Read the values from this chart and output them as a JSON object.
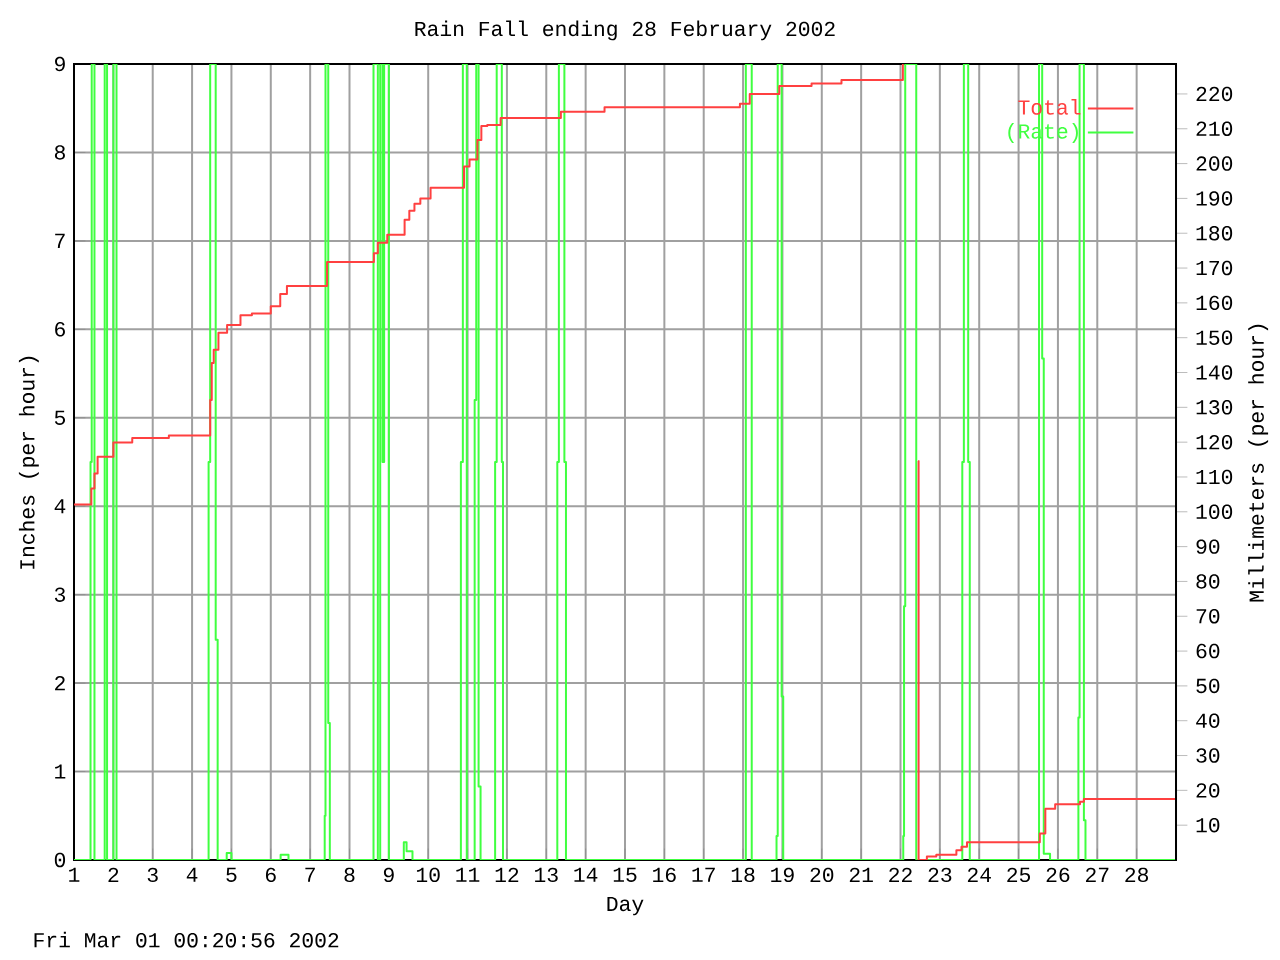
{
  "chart_data": {
    "type": "step",
    "title": "Rain Fall ending 28 February 2002",
    "xlabel": "Day",
    "ylabel": "Inches (per hour)",
    "y2label": "Millimeters (per hour)",
    "annotations": [
      "Fri Mar 01 00:20:56 2002"
    ],
    "xlim": [
      1,
      29
    ],
    "xticks": [
      1,
      2,
      3,
      4,
      5,
      6,
      7,
      8,
      9,
      10,
      11,
      12,
      13,
      14,
      15,
      16,
      17,
      18,
      19,
      20,
      21,
      22,
      23,
      24,
      25,
      26,
      27,
      28
    ],
    "ylim": [
      0,
      9
    ],
    "yticks": [
      0,
      1,
      2,
      3,
      4,
      5,
      6,
      7,
      8,
      9
    ],
    "y2lim": [
      0,
      228.6
    ],
    "y2ticks": [
      10,
      20,
      30,
      40,
      50,
      60,
      70,
      80,
      90,
      100,
      110,
      120,
      130,
      140,
      150,
      160,
      170,
      180,
      190,
      200,
      210,
      220
    ],
    "grid": true,
    "legend": "top right",
    "series": [
      {
        "name": "Total",
        "color": "#ff4040",
        "x": [
          1,
          1.44,
          1.52,
          1.6,
          2.0,
          2.48,
          3.41,
          4.46,
          4.5,
          4.55,
          4.67,
          4.89,
          5.23,
          5.52,
          6.0,
          6.24,
          6.41,
          7.43,
          8.62,
          8.72,
          8.96,
          9.4,
          9.52,
          9.65,
          9.8,
          10.06,
          10.91,
          11.05,
          11.25,
          11.35,
          11.5,
          11.84,
          13.37,
          14.48,
          17.92,
          18.17,
          18.92,
          19.74,
          20.5,
          22.06,
          22.07,
          22.45,
          22.46,
          22.67,
          22.91,
          23.42,
          23.55,
          23.69,
          25.54,
          25.68,
          25.93,
          26.56,
          26.66,
          29
        ],
        "values": [
          4.02,
          4.2,
          4.37,
          4.56,
          4.72,
          4.77,
          4.8,
          5.2,
          5.62,
          5.77,
          5.96,
          6.05,
          6.16,
          6.18,
          6.26,
          6.4,
          6.49,
          6.76,
          6.86,
          6.98,
          7.07,
          7.24,
          7.34,
          7.42,
          7.48,
          7.6,
          7.84,
          7.92,
          8.14,
          8.3,
          8.31,
          8.39,
          8.46,
          8.51,
          8.55,
          8.66,
          8.75,
          8.78,
          8.82,
          9,
          null,
          4.51,
          0,
          0.04,
          0.06,
          0.11,
          0.15,
          0.2,
          0.3,
          0.58,
          0.63,
          0.66,
          0.69,
          0.69
        ]
      },
      {
        "name": "(Rate)",
        "color": "#40ff40",
        "x": [
          1,
          1.42,
          1.45,
          1.52,
          1.78,
          1.84,
          2.0,
          2.08,
          4.42,
          4.46,
          4.6,
          4.65,
          4.88,
          5.0,
          6.25,
          6.45,
          7.37,
          7.39,
          7.46,
          7.5,
          8.61,
          8.72,
          8.78,
          8.84,
          8.88,
          9.0,
          9.38,
          9.45,
          9.6,
          10.83,
          10.88,
          10.98,
          11.18,
          11.22,
          11.28,
          11.33,
          11.7,
          11.74,
          11.87,
          11.9,
          13.28,
          13.32,
          13.46,
          13.5,
          18.07,
          18.22,
          18.85,
          18.88,
          18.98,
          19.02,
          22.07,
          22.09,
          22.12,
          22.4,
          23.57,
          23.61,
          23.72,
          23.76,
          25.52,
          25.6,
          25.64,
          25.8,
          26.52,
          26.55,
          26.66,
          26.7,
          29
        ],
        "values": [
          0,
          4.5,
          9,
          0,
          9,
          0,
          9,
          0,
          4.5,
          9,
          2.49,
          0,
          0.08,
          0,
          0.06,
          0,
          0.5,
          9,
          1.55,
          0,
          9,
          0,
          9,
          4.5,
          9,
          0,
          0.2,
          0.1,
          0,
          4.5,
          9,
          0,
          5.2,
          9,
          0.83,
          0,
          4.5,
          9,
          4.5,
          0,
          4.5,
          9,
          4.5,
          0,
          9,
          0,
          0.27,
          9,
          1.85,
          0,
          0.27,
          2.87,
          9,
          0,
          4.5,
          9,
          4.5,
          0,
          9,
          5.67,
          0.07,
          0,
          1.61,
          9,
          0.45,
          0,
          0
        ]
      }
    ]
  }
}
